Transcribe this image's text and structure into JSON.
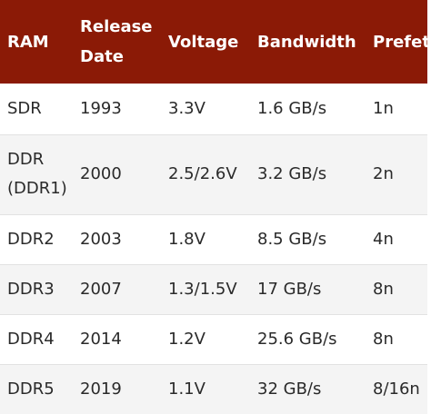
{
  "table": {
    "headers": [
      {
        "lines": [
          "RAM"
        ]
      },
      {
        "lines": [
          "Release",
          "Date"
        ]
      },
      {
        "lines": [
          "Voltage"
        ]
      },
      {
        "lines": [
          "Bandwidth"
        ]
      },
      {
        "lines": [
          "Prefetch"
        ]
      }
    ],
    "rows": [
      {
        "ram": [
          "SDR"
        ],
        "date": "1993",
        "voltage": "3.3V",
        "bandwidth": "1.6 GB/s",
        "prefetch": "1n"
      },
      {
        "ram": [
          "DDR",
          "(DDR1)"
        ],
        "date": "2000",
        "voltage": "2.5/2.6V",
        "bandwidth": "3.2 GB/s",
        "prefetch": "2n"
      },
      {
        "ram": [
          "DDR2"
        ],
        "date": "2003",
        "voltage": "1.8V",
        "bandwidth": "8.5 GB/s",
        "prefetch": "4n"
      },
      {
        "ram": [
          "DDR3"
        ],
        "date": "2007",
        "voltage": "1.3/1.5V",
        "bandwidth": "17 GB/s",
        "prefetch": "8n"
      },
      {
        "ram": [
          "DDR4"
        ],
        "date": "2014",
        "voltage": "1.2V",
        "bandwidth": "25.6 GB/s",
        "prefetch": "8n"
      },
      {
        "ram": [
          "DDR5"
        ],
        "date": "2019",
        "voltage": "1.1V",
        "bandwidth": "32 GB/s",
        "prefetch": "8/16n"
      }
    ]
  },
  "colors": {
    "header_background": "#8b1a06",
    "header_text": "#ffffff",
    "row_alt_background": "#f4f4f4",
    "body_text": "#2a2a2a"
  }
}
